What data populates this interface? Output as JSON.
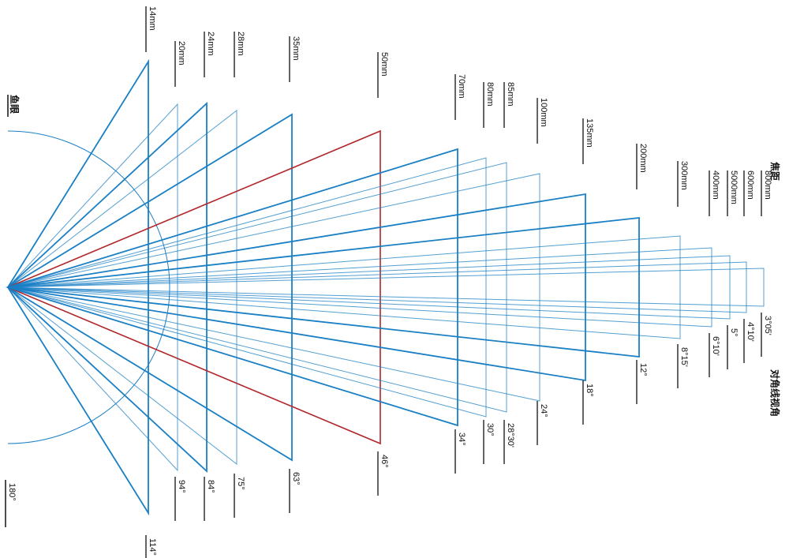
{
  "headers": {
    "fisheye": "鱼眼",
    "focal_length": "焦距",
    "diagonal_angle": "对角线视角"
  },
  "colors": {
    "primary": "#1a7fc4",
    "highlight": "#b0272b",
    "label": "#111111"
  },
  "fisheye": {
    "angle": "180°"
  },
  "lenses": [
    {
      "focal": "14mm",
      "angle": "114°",
      "emphasis": "strong"
    },
    {
      "focal": "20mm",
      "angle": "94°",
      "emphasis": "light"
    },
    {
      "focal": "24mm",
      "angle": "84°",
      "emphasis": "strong"
    },
    {
      "focal": "28mm",
      "angle": "75°",
      "emphasis": "light"
    },
    {
      "focal": "35mm",
      "angle": "63°",
      "emphasis": "strong"
    },
    {
      "focal": "50mm",
      "angle": "46°",
      "emphasis": "highlight"
    },
    {
      "focal": "70mm",
      "angle": "34°",
      "emphasis": "strong"
    },
    {
      "focal": "80mm",
      "angle": "30°",
      "emphasis": "light"
    },
    {
      "focal": "85mm",
      "angle": "28°30'",
      "emphasis": "light"
    },
    {
      "focal": "100mm",
      "angle": "24°",
      "emphasis": "light"
    },
    {
      "focal": "135mm",
      "angle": "18°",
      "emphasis": "strong"
    },
    {
      "focal": "200mm",
      "angle": "12°",
      "emphasis": "strong"
    },
    {
      "focal": "300mm",
      "angle": "8°15'",
      "emphasis": "light"
    },
    {
      "focal": "400mm",
      "angle": "6°10'",
      "emphasis": "light"
    },
    {
      "focal": "5000mm",
      "angle": "5°",
      "emphasis": "light"
    },
    {
      "focal": "600mm",
      "angle": "4°10'",
      "emphasis": "light"
    },
    {
      "focal": "800mm",
      "angle": "3°05'",
      "emphasis": "light"
    }
  ]
}
